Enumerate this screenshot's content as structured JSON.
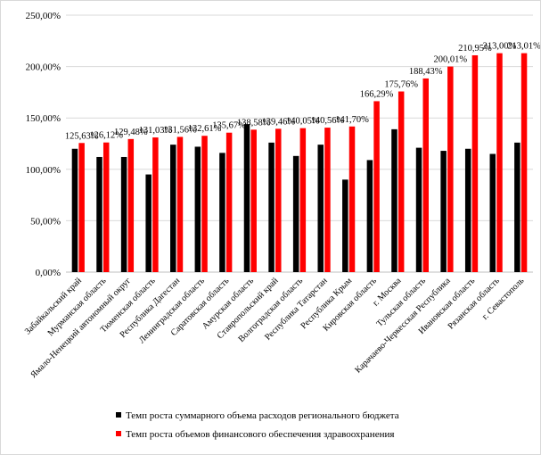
{
  "chart_data": {
    "type": "bar",
    "title": "",
    "xlabel": "",
    "ylabel": "",
    "ylim": [
      0,
      250
    ],
    "yticks": [
      0,
      50,
      100,
      150,
      200,
      250
    ],
    "ytick_labels": [
      "0,00%",
      "50,00%",
      "100,00%",
      "150,00%",
      "200,00%",
      "250,00%"
    ],
    "grid": true,
    "legend_position": "bottom",
    "categories": [
      "Забайкальский край",
      "Мурманская область",
      "Ямало-Ненецкий автономный округ",
      "Тюменская область",
      "Республика Дагестан",
      "Ленинградская область",
      "Саратовская область",
      "Амурская область",
      "Ставропольский край",
      "Волгоградская область",
      "Республика Татарстан",
      "Республика Крым",
      "Кировская область",
      "г. Москва",
      "Тульская область",
      "Карачаево-Черкесская Республика",
      "Ивановская область",
      "Рязанская область",
      "г. Севастополь"
    ],
    "series": [
      {
        "name": "Темп роста суммарного объема расходов регионального бюджета",
        "color": "#000000",
        "values": [
          120,
          112,
          112,
          95,
          124,
          122,
          116,
          144,
          126,
          113,
          124,
          90,
          109,
          139,
          121,
          118,
          120,
          115,
          126
        ]
      },
      {
        "name": "Темп роста объемов финансового обеспечения здравоохранения",
        "color": "#ff0000",
        "values": [
          125.63,
          126.12,
          129.48,
          131.03,
          131.56,
          132.61,
          135.67,
          138.58,
          139.46,
          140.05,
          140.56,
          141.7,
          166.29,
          175.76,
          188.43,
          200.01,
          210.95,
          213.0,
          213.01
        ],
        "data_labels": [
          "125,63%",
          "126,12%",
          "129,48%",
          "131,03%",
          "131,56%",
          "132,61%",
          "135,67%",
          "138,58%",
          "139,46%",
          "140,05%",
          "140,56%",
          "141,70%",
          "166,29%",
          "175,76%",
          "188,43%",
          "200,01%",
          "210,95%",
          "213,00%",
          "213,01%"
        ]
      }
    ]
  }
}
